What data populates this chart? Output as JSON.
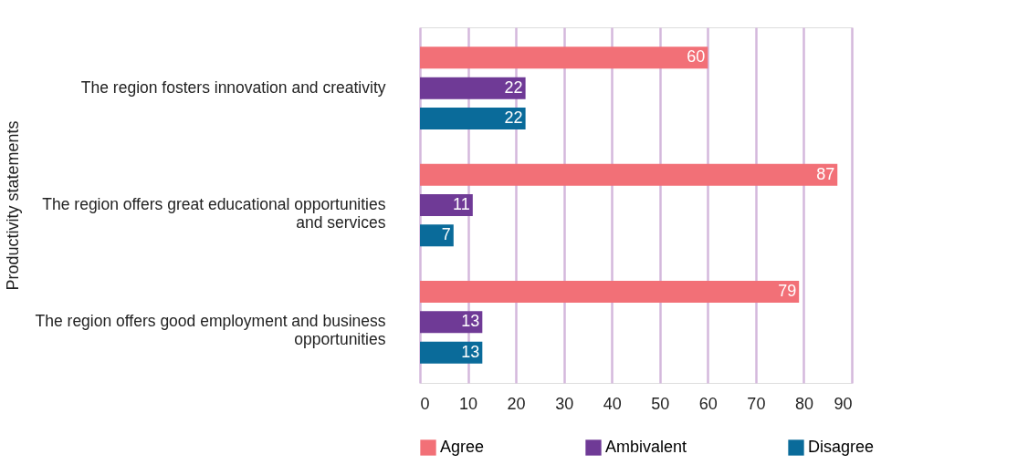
{
  "chart_data": {
    "type": "bar",
    "orientation": "horizontal",
    "ylabel": "Productivity statements",
    "categories": [
      "The region fosters innovation and creativity",
      "The region offers great educational opportunities and services",
      "The region offers good employment and business opportunities"
    ],
    "series": [
      {
        "name": "Agree",
        "color": "#f27077",
        "values": [
          60,
          87,
          79
        ]
      },
      {
        "name": "Ambivalent",
        "color": "#6f3a96",
        "values": [
          22,
          11,
          13
        ]
      },
      {
        "name": "Disagree",
        "color": "#0a6b9a",
        "values": [
          22,
          7,
          13
        ]
      }
    ],
    "xlim": [
      0,
      90
    ],
    "xticks": [
      0,
      10,
      20,
      30,
      40,
      50,
      60,
      70,
      80,
      90
    ],
    "grid": "x",
    "legend": "bottom",
    "data_labels": true
  }
}
